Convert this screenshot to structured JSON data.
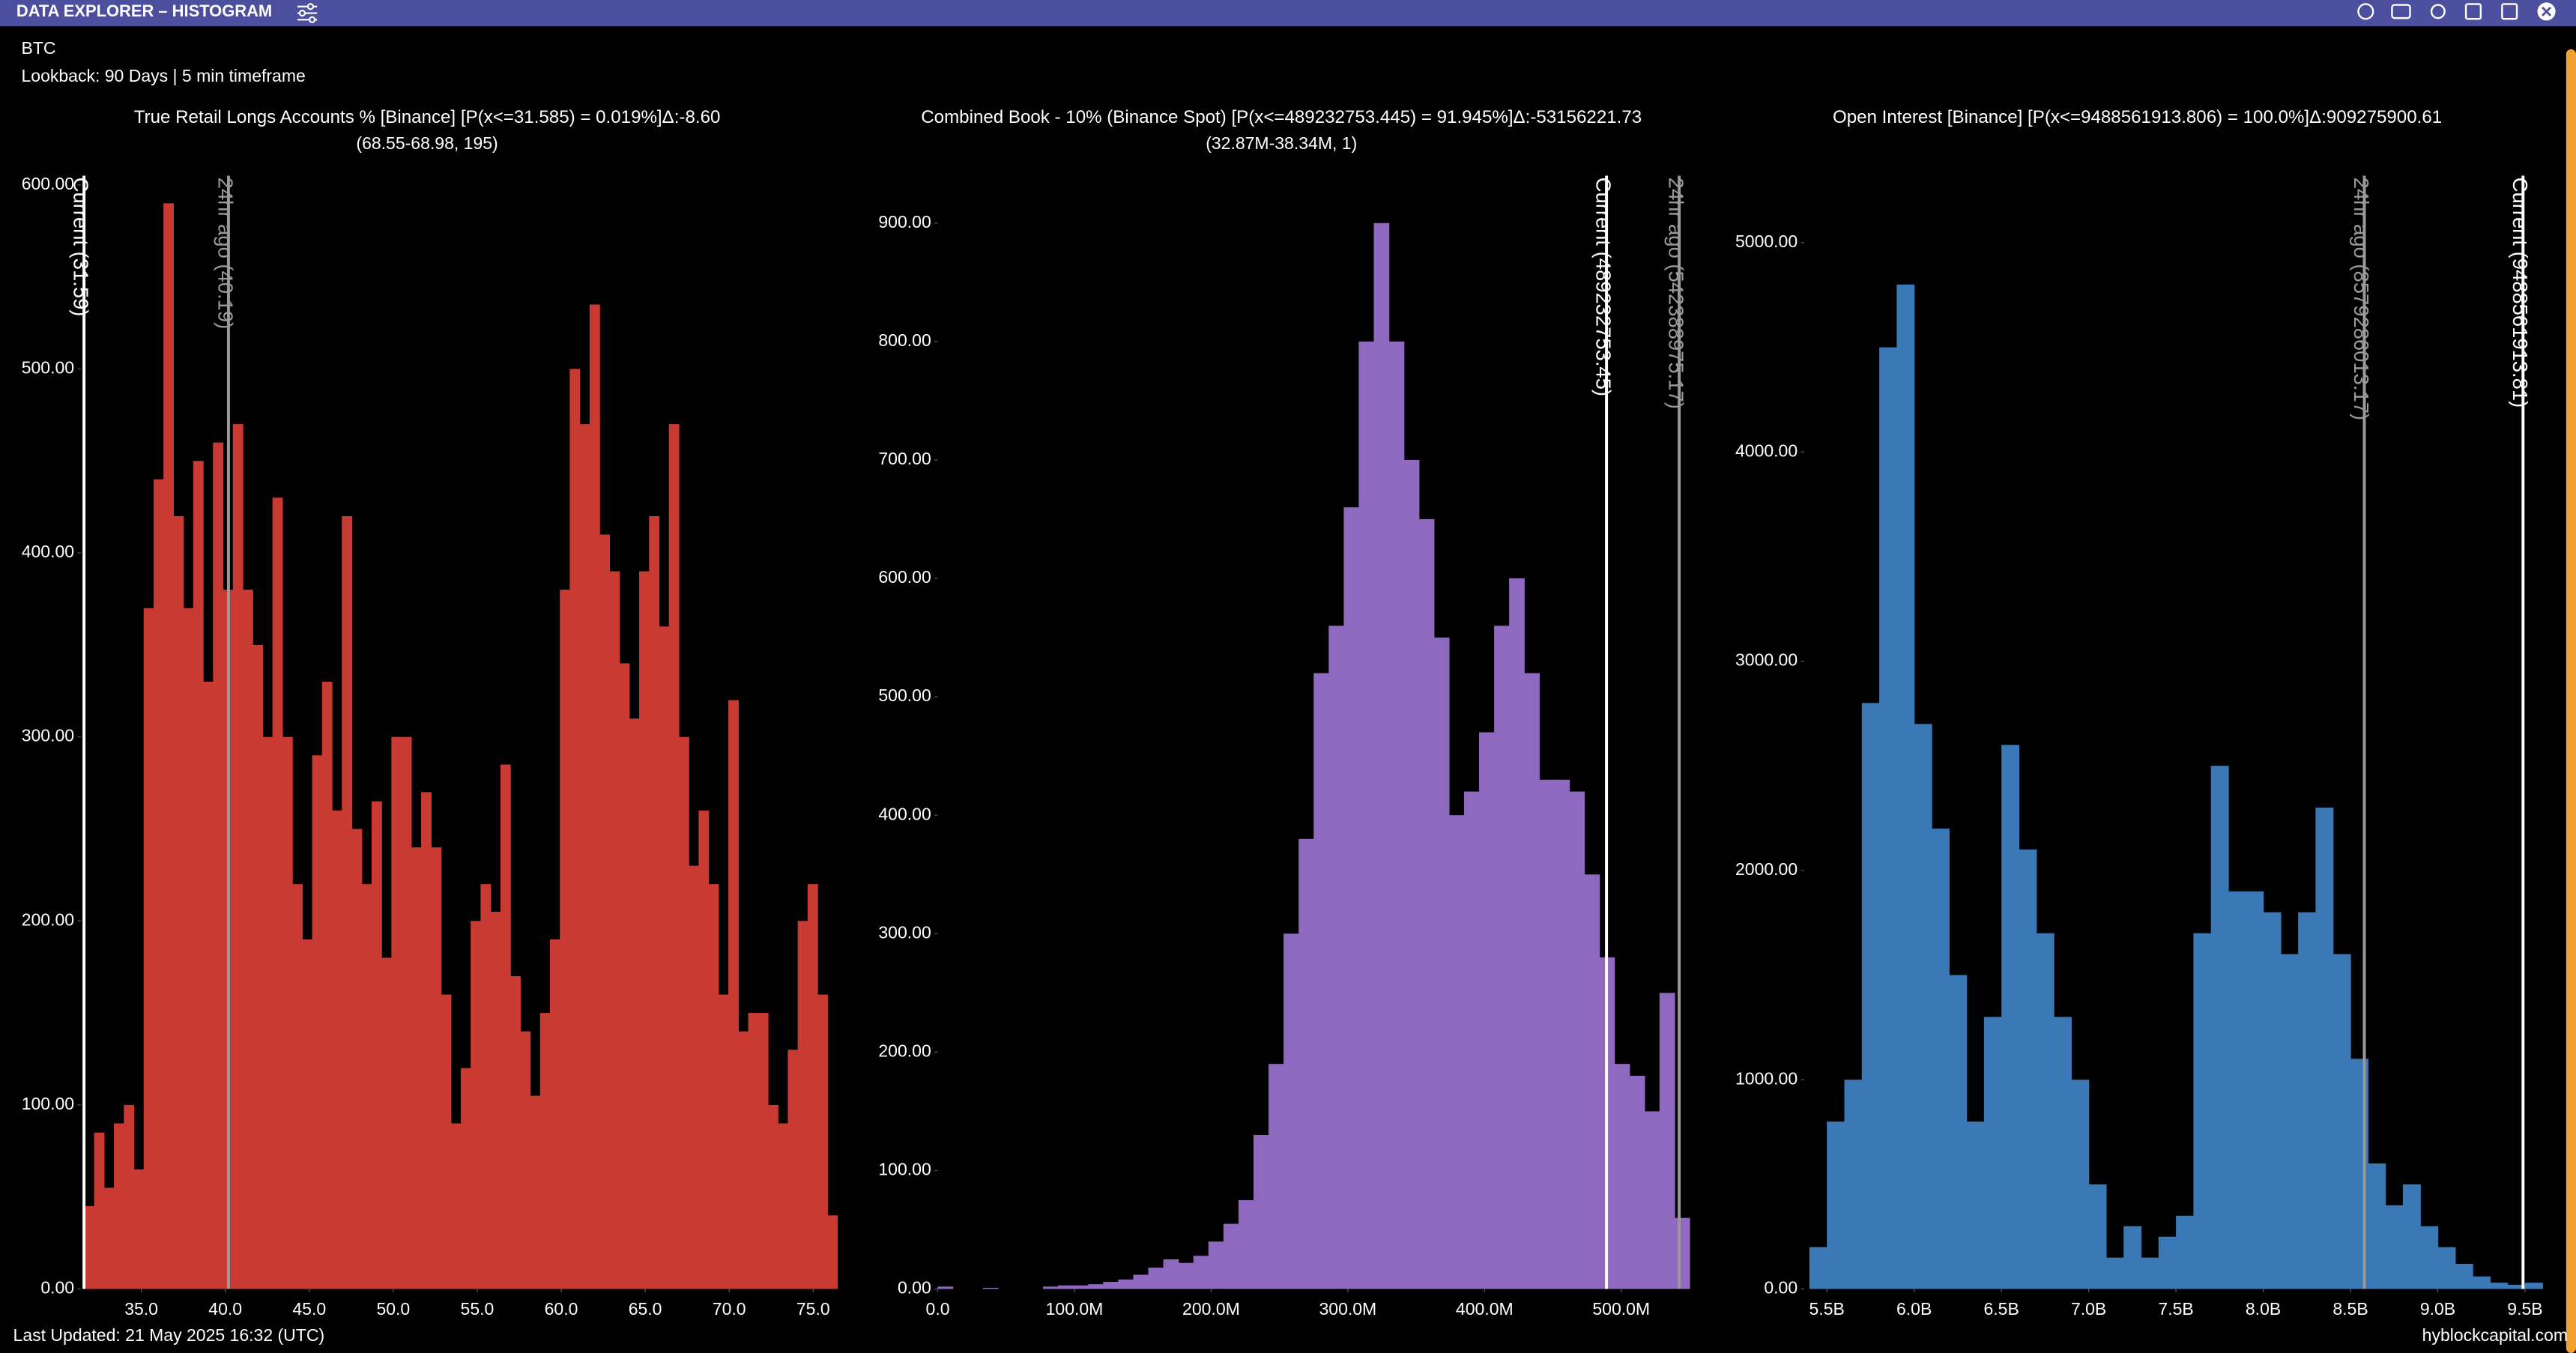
{
  "header": {
    "title": "DATA EXPLORER – HISTOGRAM",
    "symbol": "BTC",
    "lookback": "Lookback: 90 Days | 5 min timeframe"
  },
  "footer": {
    "updated": "Last Updated: 21 May 2025 16:32 (UTC)",
    "brand": "hyblockcapital.com"
  },
  "chart_data": [
    {
      "type": "histogram",
      "title": "True Retail Longs Accounts % [Binance] [P(x<=31.585) = 0.019%]Δ:-8.60",
      "subtitle": "(68.55-68.98, 195)",
      "color": "#c83a32",
      "bins": [
        31.6,
        32.19,
        32.78,
        33.37,
        33.96,
        34.55,
        35.14,
        35.73,
        36.32,
        36.91,
        37.5,
        38.09,
        38.68,
        39.27,
        39.86,
        40.45,
        41.04,
        41.63,
        42.22,
        42.81,
        43.4,
        43.99,
        44.58,
        45.17,
        45.76,
        46.35,
        46.94,
        47.53,
        48.12,
        48.71,
        49.3,
        49.89,
        50.48,
        51.07,
        51.66,
        52.25,
        52.84,
        53.43,
        54.02,
        54.61,
        55.2,
        55.79,
        56.38,
        56.97,
        57.56,
        58.15,
        58.74,
        59.33,
        59.92,
        60.51,
        61.1,
        61.69,
        62.28,
        62.87,
        63.46,
        64.05,
        64.64,
        65.23,
        65.82,
        66.41,
        67.0,
        67.59,
        68.18,
        68.77,
        69.36,
        69.95,
        70.54,
        71.13,
        71.72,
        72.31,
        72.9,
        73.49,
        74.08,
        74.67,
        75.26,
        75.85,
        76.44
      ],
      "counts": [
        45,
        85,
        55,
        90,
        100,
        65,
        370,
        440,
        590,
        420,
        370,
        450,
        330,
        460,
        380,
        470,
        380,
        350,
        300,
        430,
        300,
        220,
        190,
        290,
        330,
        260,
        420,
        250,
        220,
        265,
        180,
        300,
        300,
        240,
        270,
        240,
        160,
        90,
        120,
        200,
        220,
        205,
        285,
        170,
        140,
        105,
        150,
        190,
        380,
        500,
        470,
        535,
        410,
        390,
        340,
        310,
        390,
        420,
        360,
        470,
        300,
        230,
        260,
        220,
        160,
        320,
        140,
        150,
        150,
        100,
        90,
        130,
        200,
        220,
        160,
        40
      ],
      "xlim": [
        31.4,
        76.5
      ],
      "ylim": [
        0,
        605
      ],
      "xticks": [
        {
          "value": 35,
          "label": "35.0"
        },
        {
          "value": 40,
          "label": "40.0"
        },
        {
          "value": 45,
          "label": "45.0"
        },
        {
          "value": 50,
          "label": "50.0"
        },
        {
          "value": 55,
          "label": "55.0"
        },
        {
          "value": 60,
          "label": "60.0"
        },
        {
          "value": 65,
          "label": "65.0"
        },
        {
          "value": 70,
          "label": "70.0"
        },
        {
          "value": 75,
          "label": "75.0"
        }
      ],
      "yticks": [
        {
          "value": 0,
          "label": "0.00"
        },
        {
          "value": 100,
          "label": "100.00"
        },
        {
          "value": 200,
          "label": "200.00"
        },
        {
          "value": 300,
          "label": "300.00"
        },
        {
          "value": 400,
          "label": "400.00"
        },
        {
          "value": 500,
          "label": "500.00"
        },
        {
          "value": 600,
          "label": "600.00"
        }
      ],
      "vlines": [
        {
          "label": "Current (31.59)",
          "value": 31.59,
          "color": "#ffffff"
        },
        {
          "label": "24hr ago (40.19)",
          "value": 40.19,
          "color": "#9a9a9a"
        }
      ]
    },
    {
      "type": "histogram",
      "title": "Combined Book - 10% (Binance Spot) [P(x<=489232753.445) = 91.945%]Δ:-53156221.73",
      "subtitle": "(32.87M-38.34M, 1)",
      "color": "#8f68bf",
      "bins": [
        0,
        11000000,
        22000000,
        33000000,
        44000000,
        55000000,
        66000000,
        77000000,
        88000000,
        99000000,
        110000000,
        121000000,
        132000000,
        143000000,
        154000000,
        165000000,
        176000000,
        187000000,
        198000000,
        209000000,
        220000000,
        231000000,
        242000000,
        253000000,
        264000000,
        275000000,
        286000000,
        297000000,
        308000000,
        319000000,
        330000000,
        341000000,
        352000000,
        363000000,
        374000000,
        385000000,
        396000000,
        407000000,
        418000000,
        429000000,
        440000000,
        451000000,
        462000000,
        473000000,
        484000000,
        495000000,
        506000000,
        517000000,
        528000000,
        539000000,
        550000000
      ],
      "counts": [
        2,
        0,
        0,
        1,
        0,
        0,
        0,
        2,
        3,
        3,
        4,
        6,
        8,
        12,
        18,
        25,
        22,
        28,
        40,
        55,
        75,
        130,
        190,
        300,
        380,
        520,
        560,
        660,
        800,
        900,
        800,
        700,
        650,
        550,
        400,
        420,
        470,
        560,
        600,
        520,
        430,
        430,
        420,
        350,
        280,
        190,
        180,
        150,
        250,
        60
      ],
      "xlim": [
        0,
        555000000
      ],
      "ylim": [
        0,
        940
      ],
      "xticks": [
        {
          "value": 0,
          "label": "0.0"
        },
        {
          "value": 100000000,
          "label": "100.0M"
        },
        {
          "value": 200000000,
          "label": "200.0M"
        },
        {
          "value": 300000000,
          "label": "300.0M"
        },
        {
          "value": 400000000,
          "label": "400.0M"
        },
        {
          "value": 500000000,
          "label": "500.0M"
        }
      ],
      "yticks": [
        {
          "value": 0,
          "label": "0.00"
        },
        {
          "value": 100,
          "label": "100.00"
        },
        {
          "value": 200,
          "label": "200.00"
        },
        {
          "value": 300,
          "label": "300.00"
        },
        {
          "value": 400,
          "label": "400.00"
        },
        {
          "value": 500,
          "label": "500.00"
        },
        {
          "value": 600,
          "label": "600.00"
        },
        {
          "value": 700,
          "label": "700.00"
        },
        {
          "value": 800,
          "label": "800.00"
        },
        {
          "value": 900,
          "label": "900.00"
        }
      ],
      "vlines": [
        {
          "label": "Current (489232753.45)",
          "value": 489232753.45,
          "color": "#ffffff"
        },
        {
          "label": "24hr ago (542388975.17)",
          "value": 542388975.17,
          "color": "#9a9a9a"
        }
      ]
    },
    {
      "type": "histogram",
      "title": "Open Interest [Binance] [P(x<=9488561913.806) = 100.0%]Δ:909275900.61",
      "color": "#3a78b6",
      "bins": [
        5400000000,
        5500000000,
        5600000000,
        5700000000,
        5800000000,
        5900000000,
        6000000000,
        6100000000,
        6200000000,
        6300000000,
        6400000000,
        6500000000,
        6600000000,
        6700000000,
        6800000000,
        6900000000,
        7000000000,
        7100000000,
        7200000000,
        7300000000,
        7400000000,
        7500000000,
        7600000000,
        7700000000,
        7800000000,
        7900000000,
        8000000000,
        8100000000,
        8200000000,
        8300000000,
        8400000000,
        8500000000,
        8600000000,
        8700000000,
        8800000000,
        8900000000,
        9000000000,
        9100000000,
        9200000000,
        9300000000,
        9400000000,
        9500000000,
        9600000000
      ],
      "counts": [
        200,
        800,
        1000,
        2800,
        4500,
        4800,
        2700,
        2200,
        1500,
        800,
        1300,
        2600,
        2100,
        1700,
        1300,
        1000,
        500,
        150,
        300,
        150,
        250,
        350,
        1700,
        2500,
        1900,
        1900,
        1800,
        1600,
        1800,
        2300,
        1600,
        1100,
        600,
        400,
        500,
        300,
        200,
        120,
        60,
        30,
        20,
        30
      ],
      "xlim": [
        5370000000,
        9600000000
      ],
      "ylim": [
        0,
        5320
      ],
      "xticks": [
        {
          "value": 5500000000,
          "label": "5.5B"
        },
        {
          "value": 6000000000,
          "label": "6.0B"
        },
        {
          "value": 6500000000,
          "label": "6.5B"
        },
        {
          "value": 7000000000,
          "label": "7.0B"
        },
        {
          "value": 7500000000,
          "label": "7.5B"
        },
        {
          "value": 8000000000,
          "label": "8.0B"
        },
        {
          "value": 8500000000,
          "label": "8.5B"
        },
        {
          "value": 9000000000,
          "label": "9.0B"
        },
        {
          "value": 9500000000,
          "label": "9.5B"
        }
      ],
      "yticks": [
        {
          "value": 0,
          "label": "0.00"
        },
        {
          "value": 1000,
          "label": "1000.00"
        },
        {
          "value": 2000,
          "label": "2000.00"
        },
        {
          "value": 3000,
          "label": "3000.00"
        },
        {
          "value": 4000,
          "label": "4000.00"
        },
        {
          "value": 5000,
          "label": "5000.00"
        }
      ],
      "vlines": [
        {
          "label": "Current (9488561913.81)",
          "value": 9488561913.81,
          "color": "#ffffff"
        },
        {
          "label": "24hr ago (8579286013.17)",
          "value": 8579286013.17,
          "color": "#9a9a9a"
        }
      ]
    }
  ]
}
